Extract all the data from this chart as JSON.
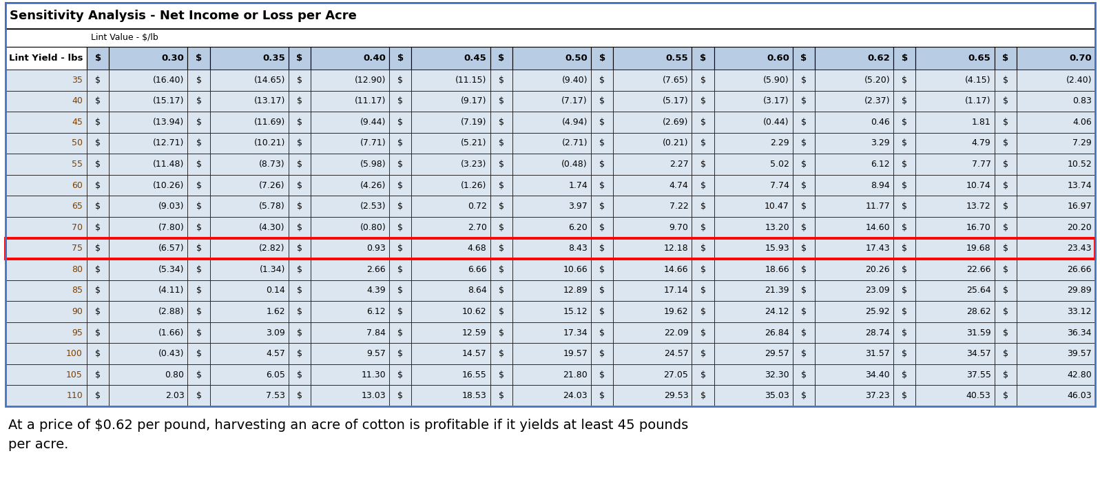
{
  "title": "Sensitivity Analysis - Net Income or Loss per Acre",
  "subtitle_col": "Lint Value - $/lb",
  "row_header": "Lint Yield - lbs",
  "lint_prices": [
    0.3,
    0.35,
    0.4,
    0.45,
    0.5,
    0.55,
    0.6,
    0.62,
    0.65,
    0.7
  ],
  "lint_yields": [
    35,
    40,
    45,
    50,
    55,
    60,
    65,
    70,
    75,
    80,
    85,
    90,
    95,
    100,
    105,
    110
  ],
  "values": [
    [
      -16.4,
      -14.65,
      -12.9,
      -11.15,
      -9.4,
      -7.65,
      -5.9,
      -5.2,
      -4.15,
      -2.4
    ],
    [
      -15.17,
      -13.17,
      -11.17,
      -9.17,
      -7.17,
      -5.17,
      -3.17,
      -2.37,
      -1.17,
      0.83
    ],
    [
      -13.94,
      -11.69,
      -9.44,
      -7.19,
      -4.94,
      -2.69,
      -0.44,
      0.46,
      1.81,
      4.06
    ],
    [
      -12.71,
      -10.21,
      -7.71,
      -5.21,
      -2.71,
      -0.21,
      2.29,
      3.29,
      4.79,
      7.29
    ],
    [
      -11.48,
      -8.73,
      -5.98,
      -3.23,
      -0.48,
      2.27,
      5.02,
      6.12,
      7.77,
      10.52
    ],
    [
      -10.26,
      -7.26,
      -4.26,
      -1.26,
      1.74,
      4.74,
      7.74,
      8.94,
      10.74,
      13.74
    ],
    [
      -9.03,
      -5.78,
      -2.53,
      0.72,
      3.97,
      7.22,
      10.47,
      11.77,
      13.72,
      16.97
    ],
    [
      -7.8,
      -4.3,
      -0.8,
      2.7,
      6.2,
      9.7,
      13.2,
      14.6,
      16.7,
      20.2
    ],
    [
      -6.57,
      -2.82,
      0.93,
      4.68,
      8.43,
      12.18,
      15.93,
      17.43,
      19.68,
      23.43
    ],
    [
      -5.34,
      -1.34,
      2.66,
      6.66,
      10.66,
      14.66,
      18.66,
      20.26,
      22.66,
      26.66
    ],
    [
      -4.11,
      0.14,
      4.39,
      8.64,
      12.89,
      17.14,
      21.39,
      23.09,
      25.64,
      29.89
    ],
    [
      -2.88,
      1.62,
      6.12,
      10.62,
      15.12,
      19.62,
      24.12,
      25.92,
      28.62,
      33.12
    ],
    [
      -1.66,
      3.09,
      7.84,
      12.59,
      17.34,
      22.09,
      26.84,
      28.74,
      31.59,
      36.34
    ],
    [
      -0.43,
      4.57,
      9.57,
      14.57,
      19.57,
      24.57,
      29.57,
      31.57,
      34.57,
      39.57
    ],
    [
      0.8,
      6.05,
      11.3,
      16.55,
      21.8,
      27.05,
      32.3,
      34.4,
      37.55,
      42.8
    ],
    [
      2.03,
      7.53,
      13.03,
      18.53,
      24.03,
      29.53,
      35.03,
      37.23,
      40.53,
      46.03
    ]
  ],
  "highlighted_row": 8,
  "footer_text": "At a price of $0.62 per pound, harvesting an acre of cotton is profitable if it yields at least 45 pounds\nper acre.",
  "col_bg_color": "#b8cce4",
  "row_bg_color": "#dce6f1",
  "header_bg": "#ffffff",
  "title_bg": "#ffffff",
  "highlight_border_color": "#ff0000",
  "outer_border_color": "#4472c4",
  "fig_bg_color": "#f2f2f2",
  "table_bg": "#ffffff"
}
